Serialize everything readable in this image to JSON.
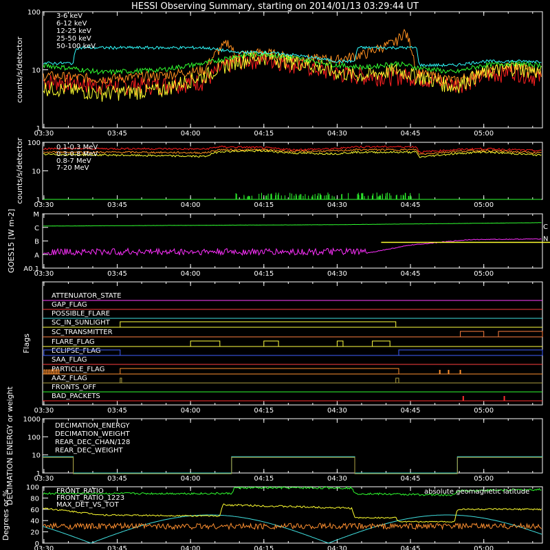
{
  "title": "HESSI Observing Summary, starting on 2014/01/13 03:29:44 UT",
  "time_ticks": [
    "03:30",
    "03:45",
    "04:00",
    "04:15",
    "04:30",
    "04:45",
    "05:00"
  ],
  "chart_data": [
    {
      "type": "line",
      "name": "lightcurves-low",
      "ylabel": "counts/s/detector",
      "yscale": "log",
      "ylim": [
        1,
        100
      ],
      "yticks": [
        "1",
        "10",
        "100"
      ],
      "series": [
        {
          "name": "3-6 keV",
          "color": "#ff2020",
          "points": [
            [
              3.5,
              6.5
            ],
            [
              3.7,
              5.5
            ],
            [
              3.9,
              5.6
            ],
            [
              4.05,
              6.5
            ],
            [
              4.15,
              14
            ],
            [
              4.25,
              16
            ],
            [
              4.35,
              13
            ],
            [
              4.48,
              9
            ],
            [
              4.6,
              8
            ],
            [
              4.75,
              8
            ],
            [
              4.9,
              5.5
            ],
            [
              5.0,
              8
            ],
            [
              5.1,
              10
            ],
            [
              5.2,
              7
            ]
          ]
        },
        {
          "name": "6-12 keV",
          "color": "#ff9020",
          "points": [
            [
              3.5,
              8
            ],
            [
              3.7,
              7
            ],
            [
              3.9,
              8
            ],
            [
              4.05,
              10
            ],
            [
              4.13,
              30
            ],
            [
              4.15,
              18
            ],
            [
              4.25,
              20
            ],
            [
              4.35,
              16
            ],
            [
              4.5,
              15
            ],
            [
              4.6,
              19
            ],
            [
              4.7,
              30
            ],
            [
              4.73,
              45
            ],
            [
              4.77,
              9
            ],
            [
              4.9,
              6.5
            ],
            [
              5.0,
              9
            ],
            [
              5.1,
              12
            ],
            [
              5.2,
              9
            ]
          ]
        },
        {
          "name": "12-25 keV",
          "color": "#ffff30",
          "points": [
            [
              3.5,
              5
            ],
            [
              3.7,
              4
            ],
            [
              3.9,
              4.5
            ],
            [
              4.05,
              8
            ],
            [
              4.15,
              14
            ],
            [
              4.25,
              17
            ],
            [
              4.35,
              14
            ],
            [
              4.5,
              9
            ],
            [
              4.6,
              8
            ],
            [
              4.7,
              10
            ],
            [
              4.77,
              8
            ],
            [
              4.9,
              5
            ],
            [
              5.0,
              9
            ],
            [
              5.1,
              11
            ],
            [
              5.2,
              9
            ]
          ]
        },
        {
          "name": "25-50 keV",
          "color": "#30ff30",
          "points": [
            [
              3.5,
              12
            ],
            [
              3.7,
              9
            ],
            [
              3.9,
              10
            ],
            [
              4.05,
              13
            ],
            [
              4.15,
              17
            ],
            [
              4.25,
              19
            ],
            [
              4.35,
              16
            ],
            [
              4.5,
              12
            ],
            [
              4.6,
              11
            ],
            [
              4.7,
              13
            ],
            [
              4.77,
              11
            ],
            [
              4.9,
              9
            ],
            [
              5.0,
              12
            ],
            [
              5.1,
              13
            ],
            [
              5.2,
              12
            ]
          ]
        },
        {
          "name": "50-100 keV",
          "color": "#30ffff",
          "points": [
            [
              3.5,
              13
            ],
            [
              3.6,
              13
            ],
            [
              3.61,
              24
            ],
            [
              3.85,
              24
            ],
            [
              4.05,
              24
            ],
            [
              4.15,
              20
            ],
            [
              4.25,
              20
            ],
            [
              4.35,
              18
            ],
            [
              4.5,
              14
            ],
            [
              4.56,
              14
            ],
            [
              4.57,
              24
            ],
            [
              4.77,
              24
            ],
            [
              4.78,
              12
            ],
            [
              4.9,
              12
            ],
            [
              5.0,
              14
            ],
            [
              5.2,
              14
            ]
          ]
        }
      ]
    },
    {
      "type": "line",
      "name": "lightcurves-high",
      "ylabel": "counts/s/detector",
      "yscale": "log",
      "ylim": [
        1,
        100
      ],
      "yticks": [
        "1",
        "10",
        "100"
      ],
      "series": [
        {
          "name": "0.1-0.3 MeV",
          "color": "#ff2020",
          "points": [
            [
              3.5,
              60
            ],
            [
              3.8,
              60
            ],
            [
              4.05,
              58
            ],
            [
              4.1,
              70
            ],
            [
              4.25,
              65
            ],
            [
              4.35,
              55
            ],
            [
              4.5,
              60
            ],
            [
              4.56,
              70
            ],
            [
              4.7,
              70
            ],
            [
              4.77,
              70
            ],
            [
              4.78,
              45
            ],
            [
              4.9,
              55
            ],
            [
              5.0,
              60
            ],
            [
              5.2,
              50
            ]
          ]
        },
        {
          "name": "0.3-0.8 MeV",
          "color": "#ff9020",
          "points": [
            [
              3.5,
              45
            ],
            [
              3.8,
              45
            ],
            [
              4.05,
              43
            ],
            [
              4.1,
              55
            ],
            [
              4.25,
              55
            ],
            [
              4.35,
              48
            ],
            [
              4.5,
              50
            ],
            [
              4.56,
              55
            ],
            [
              4.77,
              55
            ],
            [
              4.78,
              38
            ],
            [
              4.9,
              48
            ],
            [
              5.0,
              52
            ],
            [
              5.2,
              42
            ]
          ]
        },
        {
          "name": "0.8-7 MeV",
          "color": "#ffff30",
          "points": [
            [
              3.5,
              38
            ],
            [
              3.8,
              35
            ],
            [
              4.05,
              32
            ],
            [
              4.1,
              48
            ],
            [
              4.25,
              50
            ],
            [
              4.35,
              42
            ],
            [
              4.5,
              40
            ],
            [
              4.56,
              45
            ],
            [
              4.77,
              45
            ],
            [
              4.78,
              30
            ],
            [
              4.9,
              40
            ],
            [
              5.0,
              46
            ],
            [
              5.2,
              35
            ]
          ]
        },
        {
          "name": "7-20 MeV",
          "color": "#30ff30",
          "points": [
            [
              3.5,
              1
            ],
            [
              5.2,
              1
            ]
          ]
        }
      ]
    },
    {
      "type": "line",
      "name": "goes",
      "ylabel": "GOES15 [W m-2]",
      "ylim": [
        "A0.1",
        "M"
      ],
      "yticks": [
        "A0.1",
        "A",
        "B",
        "C",
        "M"
      ],
      "side_labels": [
        "C",
        "N"
      ],
      "series": [
        {
          "name": "GOES long",
          "color": "#30ff30",
          "points": [
            [
              3.5,
              -5.9
            ],
            [
              4.5,
              -5.8
            ],
            [
              5.2,
              -5.65
            ]
          ]
        },
        {
          "name": "GOES short",
          "color": "#ff30ff",
          "points": [
            [
              3.5,
              -7.9
            ],
            [
              4.6,
              -7.9
            ],
            [
              4.75,
              -7.3
            ],
            [
              4.95,
              -6.9
            ],
            [
              5.2,
              -6.85
            ]
          ]
        },
        {
          "name": "GOES reference",
          "color": "#ffff30",
          "points": [
            [
              4.65,
              -7.1
            ],
            [
              5.2,
              -7.1
            ]
          ]
        }
      ]
    },
    {
      "type": "table",
      "name": "flags",
      "ylabel": "Flags",
      "rows": [
        {
          "name": "ATTENUATOR_STATE",
          "color": "#ff40ff"
        },
        {
          "name": "GAP_FLAG",
          "color": "#ff4040"
        },
        {
          "name": "POSSIBLE_FLARE",
          "color": "#40e0e0"
        },
        {
          "name": "SC_IN_SUNLIGHT",
          "color": "#ffff40"
        },
        {
          "name": "SC_TRANSMITTER",
          "color": "#ff8040"
        },
        {
          "name": "FLARE_FLAG",
          "color": "#ffff40"
        },
        {
          "name": "ECLIPSE_FLAG",
          "color": "#4060ff"
        },
        {
          "name": "SAA_FLAG",
          "color": "#ff4040"
        },
        {
          "name": "PARTICLE_FLAG",
          "color": "#ff9030"
        },
        {
          "name": "AAZ_FLAG",
          "color": "#b0a040"
        },
        {
          "name": "FRONTS_OFF",
          "color": "#30ff30"
        },
        {
          "name": "BAD_PACKETS",
          "color": "#ff3030"
        }
      ]
    },
    {
      "type": "line",
      "name": "decimation",
      "ylabel": "DECIMATION ENERGY or weight",
      "yscale": "log",
      "ylim": [
        1,
        1000
      ],
      "yticks": [
        "1",
        "10",
        "100",
        "1000"
      ],
      "series": [
        {
          "name": "DECIMATION_ENERGY",
          "color": "#30ff30"
        },
        {
          "name": "DECIMATION_WEIGHT",
          "color": "#ff9030"
        },
        {
          "name": "REAR_DEC_CHAN/128",
          "color": "#40e0e0"
        },
        {
          "name": "REAR_DEC_WEIGHT",
          "color": "#b0a040"
        }
      ]
    },
    {
      "type": "line",
      "name": "ratios",
      "ylabel": "Degrees or %",
      "ylim": [
        0,
        100
      ],
      "yticks": [
        "0",
        "20",
        "40",
        "60",
        "80",
        "100"
      ],
      "legend_right": "absolute geomagnetic latitude",
      "series": [
        {
          "name": "FRONT_RATIO",
          "color": "#30ff30"
        },
        {
          "name": "FRONT_RATIO_1223",
          "color": "#ffff30"
        },
        {
          "name": "MAX_DET_VS_TOT",
          "color": "#ff9030"
        }
      ]
    }
  ]
}
